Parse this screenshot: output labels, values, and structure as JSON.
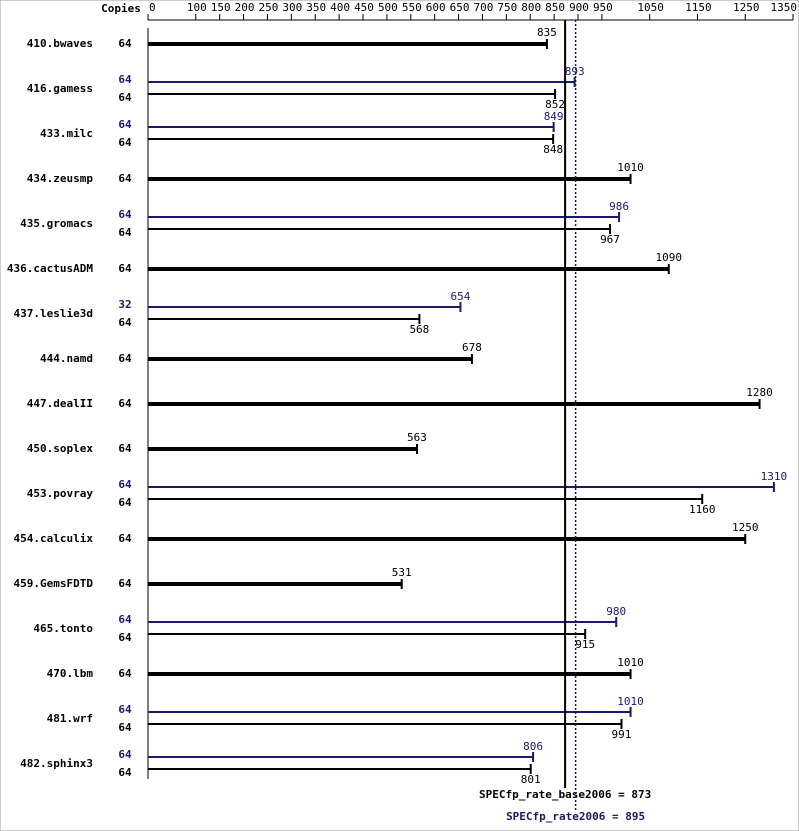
{
  "chart_data": {
    "type": "bar",
    "orientation": "horizontal",
    "copies_header": "Copies",
    "categories": [
      "410.bwaves",
      "416.gamess",
      "433.milc",
      "434.zeusmp",
      "435.gromacs",
      "436.cactusADM",
      "437.leslie3d",
      "444.namd",
      "447.dealII",
      "450.soplex",
      "453.povray",
      "454.calculix",
      "459.GemsFDTD",
      "465.tonto",
      "470.lbm",
      "481.wrf",
      "482.sphinx3"
    ],
    "series": [
      {
        "color": "#000000",
        "copies": [
          64,
          64,
          64,
          64,
          64,
          64,
          64,
          64,
          64,
          64,
          64,
          64,
          64,
          64,
          64,
          64,
          64
        ],
        "values": [
          835,
          852,
          848,
          1010,
          967,
          1090,
          568,
          678,
          1280,
          563,
          1160,
          1250,
          531,
          915,
          1010,
          991,
          801
        ]
      },
      {
        "color": "#191970",
        "copies": [
          null,
          64,
          64,
          null,
          64,
          null,
          32,
          null,
          null,
          null,
          64,
          null,
          null,
          64,
          null,
          64,
          64
        ],
        "values": [
          null,
          893,
          849,
          null,
          986,
          null,
          654,
          null,
          null,
          null,
          1310,
          null,
          null,
          980,
          null,
          1010,
          806
        ]
      }
    ],
    "xlim": [
      0,
      1350
    ],
    "xticks": [
      0,
      100,
      150,
      200,
      250,
      300,
      350,
      400,
      450,
      500,
      550,
      600,
      650,
      700,
      750,
      800,
      850,
      900,
      950,
      1050,
      1150,
      1250,
      1350
    ],
    "reference_lines": [
      {
        "label": "SPECfp_rate_base2006 = 873",
        "value": 873,
        "color": "#000000",
        "style": "solid"
      },
      {
        "label": "SPECfp_rate2006 = 895",
        "value": 895,
        "color": "#191970",
        "style": "dotted"
      }
    ]
  }
}
